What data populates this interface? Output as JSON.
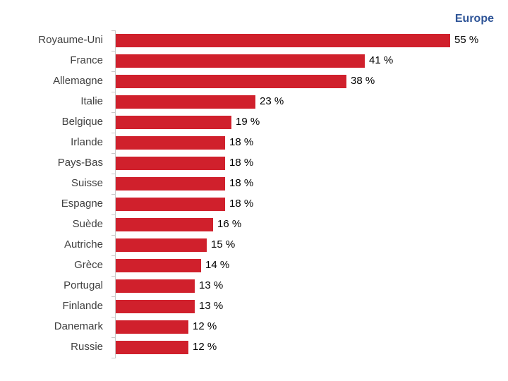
{
  "chart_data": {
    "type": "bar",
    "orientation": "horizontal",
    "title": "Europe",
    "categories": [
      "Royaume-Uni",
      "France",
      "Allemagne",
      "Italie",
      "Belgique",
      "Irlande",
      "Pays-Bas",
      "Suisse",
      "Espagne",
      "Suède",
      "Autriche",
      "Grèce",
      "Portugal",
      "Finlande",
      "Danemark",
      "Russie"
    ],
    "values": [
      55,
      41,
      38,
      23,
      19,
      18,
      18,
      18,
      18,
      16,
      15,
      14,
      13,
      13,
      12,
      12
    ],
    "value_suffix": " %",
    "xlabel": "",
    "ylabel": "",
    "xlim": [
      0,
      55
    ],
    "grid": false,
    "legend": null,
    "bar_color": "#d0202c",
    "title_color": "#2e5497"
  },
  "labels": [
    "55 %",
    "41 %",
    "38 %",
    "23 %",
    "19 %",
    "18 %",
    "18 %",
    "18 %",
    "18 %",
    "16 %",
    "15 %",
    "14 %",
    "13 %",
    "13 %",
    "12 %",
    "12 %"
  ]
}
